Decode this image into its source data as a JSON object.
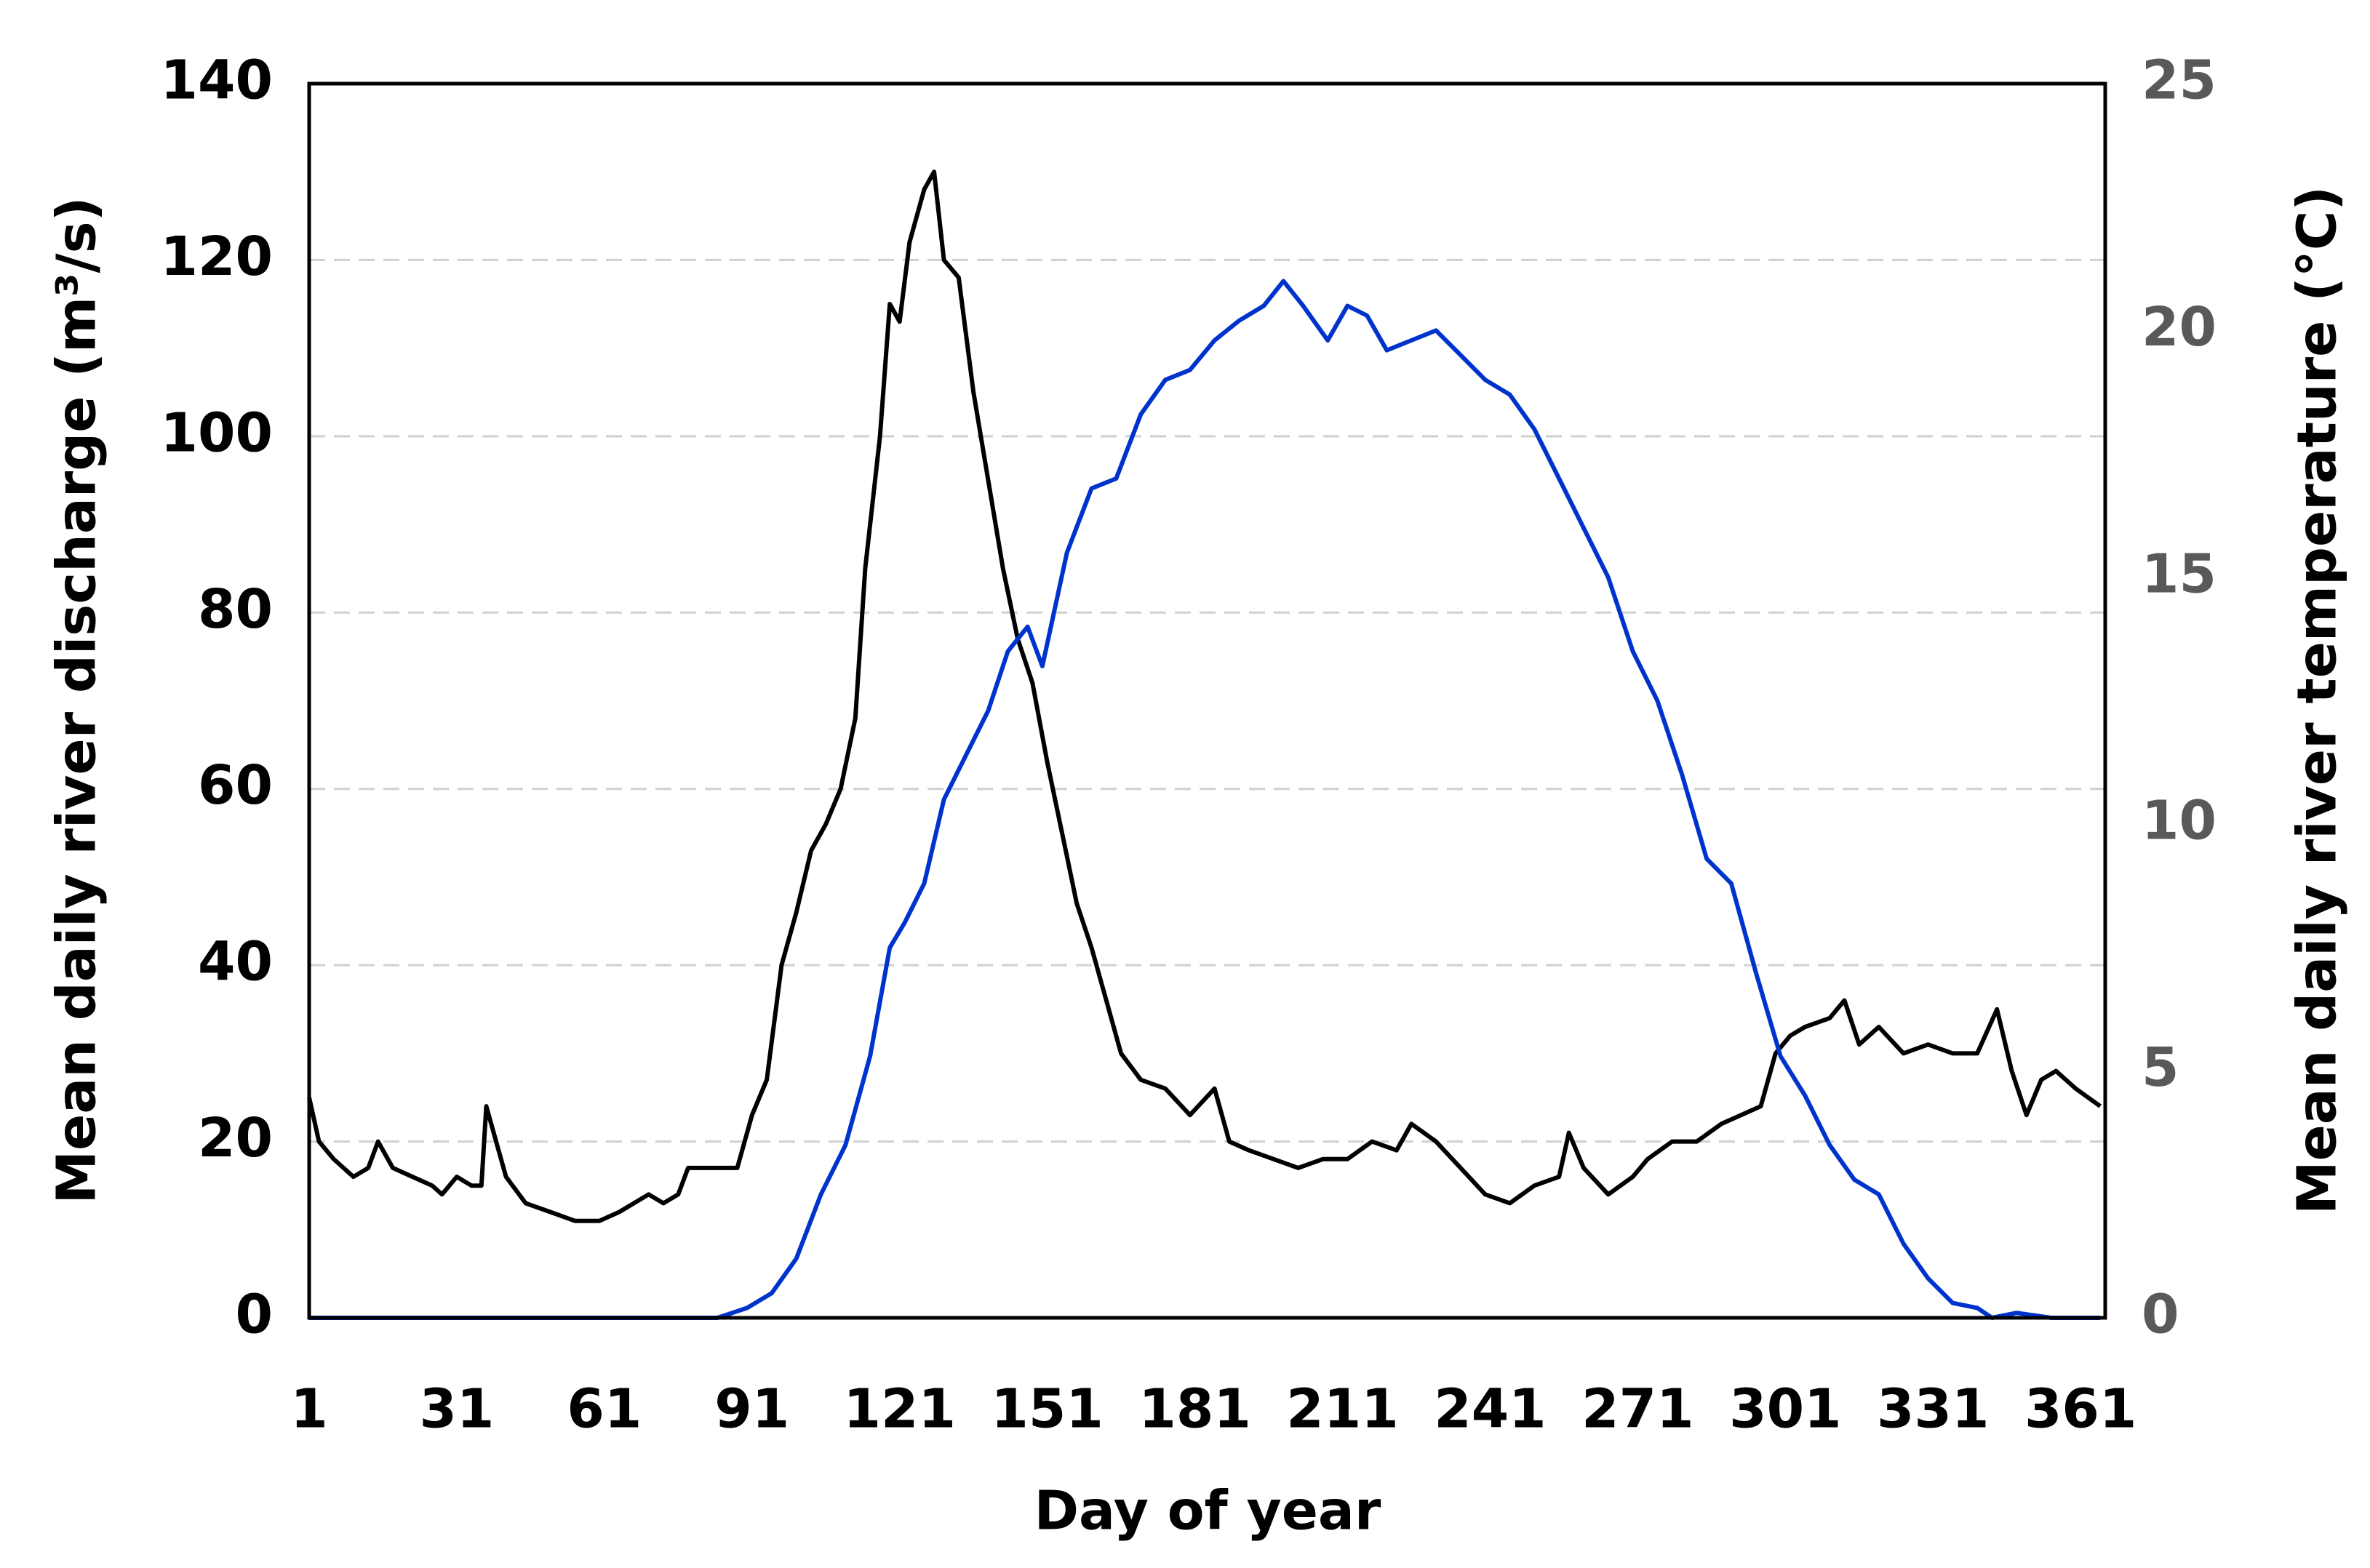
{
  "chart_data": {
    "type": "line",
    "xlabel": "Day of year",
    "ylabel": "Mean daily river discharge (m³/s)",
    "y2label": "Mean daily river temperature (°C)",
    "xlim": [
      1,
      366
    ],
    "xticks": [
      1,
      31,
      61,
      91,
      121,
      151,
      181,
      211,
      241,
      271,
      301,
      331,
      361
    ],
    "ylim": [
      0,
      140
    ],
    "yticks": [
      0,
      20,
      40,
      60,
      80,
      100,
      120,
      140
    ],
    "y2lim": [
      0,
      25
    ],
    "y2ticks": [
      0,
      5,
      10,
      15,
      20,
      25
    ],
    "grid": true,
    "series": [
      {
        "name": "Mean daily river discharge",
        "color": "#000000",
        "x": [
          1,
          3,
          6,
          10,
          13,
          15,
          18,
          22,
          26,
          28,
          31,
          34,
          36,
          37,
          39,
          41,
          45,
          50,
          55,
          60,
          64,
          67,
          70,
          73,
          76,
          78,
          82,
          88,
          91,
          94,
          97,
          100,
          103,
          106,
          109,
          112,
          114,
          117,
          119,
          121,
          123,
          126,
          128,
          130,
          133,
          136,
          139,
          142,
          145,
          148,
          151,
          154,
          157,
          160,
          163,
          166,
          170,
          175,
          180,
          185,
          188,
          192,
          197,
          202,
          207,
          212,
          217,
          222,
          225,
          230,
          235,
          240,
          245,
          250,
          255,
          257,
          260,
          265,
          270,
          273,
          278,
          283,
          288,
          292,
          296,
          299,
          302,
          305,
          310,
          313,
          316,
          320,
          325,
          330,
          335,
          340,
          344,
          347,
          350,
          353,
          356,
          360,
          365
        ],
        "values": [
          25,
          20,
          18,
          16,
          17,
          20,
          17,
          16,
          15,
          14,
          16,
          15,
          15,
          24,
          20,
          16,
          13,
          12,
          11,
          11,
          12,
          13,
          14,
          13,
          14,
          17,
          17,
          17,
          23,
          27,
          40,
          46,
          53,
          56,
          60,
          68,
          85,
          100,
          115,
          113,
          122,
          128,
          130,
          120,
          118,
          105,
          95,
          85,
          77,
          72,
          63,
          55,
          47,
          42,
          36,
          30,
          27,
          26,
          23,
          26,
          20,
          19,
          18,
          17,
          18,
          18,
          20,
          19,
          22,
          20,
          17,
          14,
          13,
          15,
          16,
          21,
          17,
          14,
          16,
          18,
          20,
          20,
          22,
          23,
          24,
          30,
          32,
          33,
          34,
          36,
          31,
          33,
          30,
          31,
          30,
          30,
          35,
          28,
          23,
          27,
          28,
          26,
          24
        ]
      },
      {
        "name": "Mean daily river temperature",
        "color": "#0033cc",
        "axis": "y2",
        "x": [
          1,
          84,
          90,
          95,
          100,
          105,
          110,
          115,
          119,
          122,
          126,
          130,
          135,
          139,
          143,
          147,
          150,
          155,
          160,
          165,
          170,
          175,
          180,
          185,
          190,
          195,
          199,
          203,
          208,
          212,
          216,
          220,
          225,
          230,
          235,
          240,
          245,
          250,
          255,
          260,
          265,
          270,
          275,
          280,
          285,
          290,
          295,
          300,
          305,
          310,
          315,
          320,
          325,
          330,
          335,
          340,
          343,
          348,
          355,
          365
        ],
        "values": [
          0,
          0,
          0.2,
          0.5,
          1.2,
          2.5,
          3.5,
          5.3,
          7.5,
          8.0,
          8.8,
          10.5,
          11.5,
          12.3,
          13.5,
          14.0,
          13.2,
          15.5,
          16.8,
          17.0,
          18.3,
          19.0,
          19.2,
          19.8,
          20.2,
          20.5,
          21.0,
          20.5,
          19.8,
          20.5,
          20.3,
          19.6,
          19.8,
          20.0,
          19.5,
          19.0,
          18.7,
          18.0,
          17.0,
          16.0,
          15.0,
          13.5,
          12.5,
          11.0,
          9.3,
          8.8,
          7.0,
          5.3,
          4.5,
          3.5,
          2.8,
          2.5,
          1.5,
          0.8,
          0.3,
          0.2,
          0,
          0.1,
          0,
          0
        ]
      }
    ]
  }
}
